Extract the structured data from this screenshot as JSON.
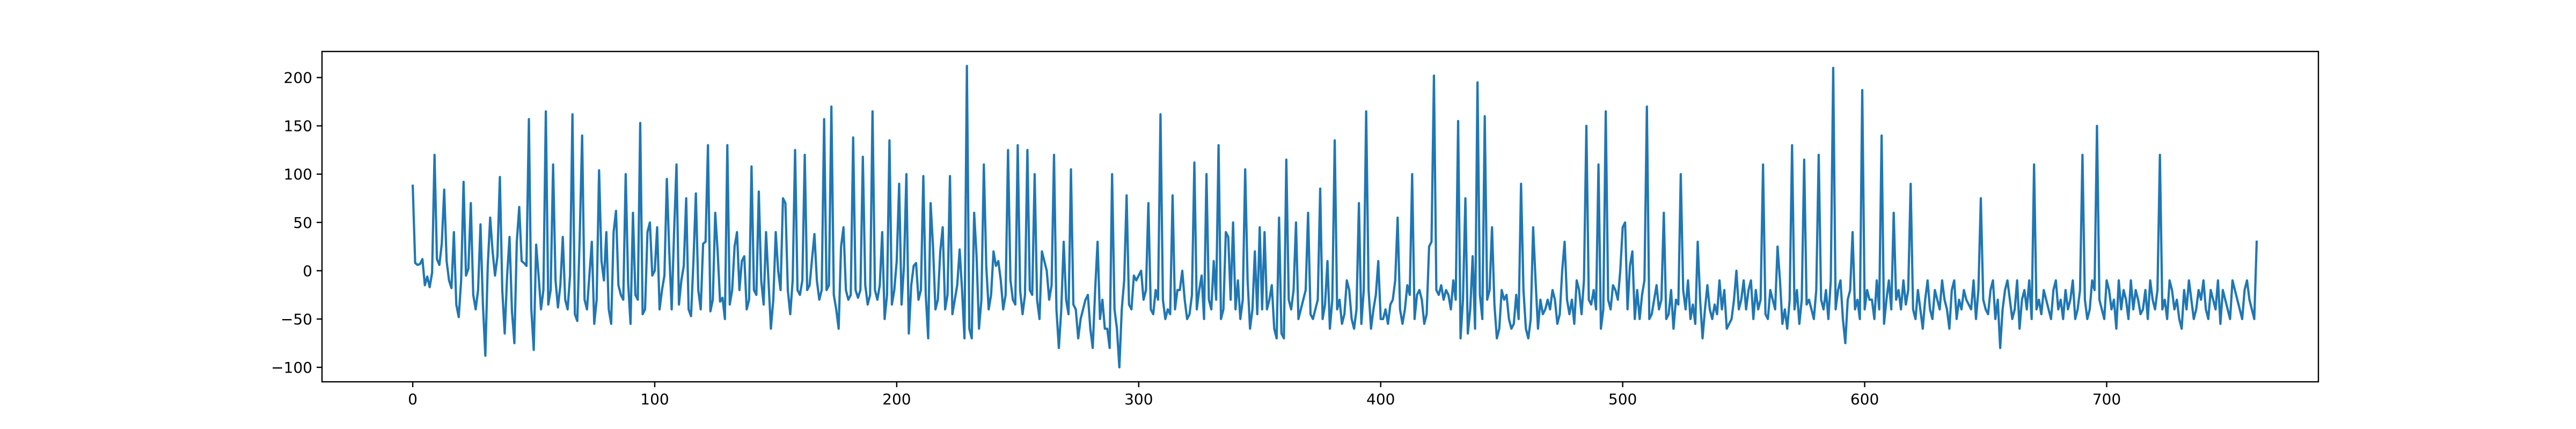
{
  "chart_data": {
    "type": "line",
    "title": "",
    "xlabel": "",
    "ylabel": "",
    "xlim": [
      -37.5,
      787.5
    ],
    "ylim": [
      -115,
      227
    ],
    "xticks": [
      0,
      100,
      200,
      300,
      400,
      500,
      600,
      700
    ],
    "yticks": [
      -100,
      -50,
      0,
      50,
      100,
      150,
      200
    ],
    "x_tick_labels": [
      "0",
      "100",
      "200",
      "300",
      "400",
      "500",
      "600",
      "700"
    ],
    "y_tick_labels": [
      "−100",
      "−50",
      "0",
      "50",
      "100",
      "150",
      "200"
    ],
    "grid": false,
    "line_color": "#1f77b4",
    "series": [
      {
        "x_start": 0,
        "x_step": 1,
        "values": [
          88,
          8,
          6,
          7,
          12,
          -15,
          -6,
          -17,
          -2,
          120,
          12,
          6,
          28,
          84,
          10,
          -10,
          -18,
          40,
          -35,
          -48,
          -10,
          92,
          -5,
          2,
          70,
          -25,
          -40,
          -20,
          48,
          -35,
          -88,
          5,
          55,
          20,
          -5,
          15,
          97,
          -20,
          -65,
          -5,
          35,
          -42,
          -75,
          30,
          66,
          10,
          8,
          5,
          157,
          -40,
          -82,
          27,
          -5,
          -40,
          -20,
          165,
          -35,
          -20,
          110,
          -10,
          -38,
          -15,
          35,
          -30,
          -40,
          -5,
          162,
          -45,
          -52,
          35,
          140,
          -30,
          -40,
          -5,
          30,
          -55,
          -30,
          104,
          10,
          -10,
          40,
          -40,
          -55,
          40,
          62,
          -15,
          -25,
          -30,
          100,
          -12,
          -55,
          60,
          -25,
          -30,
          153,
          -45,
          -40,
          40,
          50,
          -5,
          0,
          45,
          -40,
          -20,
          -5,
          95,
          20,
          -40,
          40,
          110,
          -35,
          -10,
          5,
          75,
          -40,
          -47,
          10,
          80,
          -20,
          -40,
          28,
          30,
          130,
          -42,
          -30,
          60,
          20,
          -32,
          -28,
          -50,
          130,
          -35,
          -20,
          25,
          40,
          -20,
          10,
          15,
          -40,
          -30,
          108,
          -20,
          -25,
          82,
          -10,
          -35,
          40,
          -10,
          -60,
          -30,
          40,
          0,
          -20,
          75,
          70,
          -20,
          -45,
          -10,
          125,
          -20,
          -25,
          -10,
          120,
          -20,
          -15,
          12,
          38,
          -10,
          -30,
          -20,
          157,
          -20,
          -15,
          170,
          -25,
          -40,
          -60,
          25,
          45,
          -20,
          -30,
          -25,
          138,
          -20,
          -28,
          -20,
          118,
          -15,
          -35,
          -25,
          165,
          -20,
          -30,
          -15,
          40,
          -50,
          -25,
          135,
          -35,
          -20,
          10,
          90,
          -35,
          5,
          100,
          -65,
          -15,
          5,
          8,
          -30,
          -20,
          98,
          -25,
          -70,
          70,
          25,
          -40,
          -30,
          20,
          45,
          -40,
          -25,
          98,
          -45,
          -30,
          -15,
          22,
          -20,
          -70,
          212,
          -60,
          -70,
          60,
          15,
          -60,
          -30,
          110,
          5,
          -40,
          -25,
          20,
          5,
          10,
          -10,
          -40,
          -25,
          125,
          -10,
          -30,
          -35,
          130,
          -20,
          -45,
          -25,
          125,
          -20,
          -25,
          100,
          -30,
          -50,
          20,
          10,
          0,
          -30,
          -15,
          120,
          -40,
          -80,
          -40,
          30,
          -30,
          -45,
          105,
          -35,
          -40,
          -70,
          -50,
          -40,
          -30,
          -25,
          -60,
          -80,
          -20,
          30,
          -50,
          -30,
          -60,
          -60,
          -80,
          100,
          -40,
          -60,
          -100,
          -40,
          -10,
          78,
          -35,
          -40,
          -5,
          -10,
          -5,
          0,
          -30,
          -20,
          70,
          -40,
          -45,
          -20,
          -30,
          162,
          -30,
          -50,
          -40,
          -45,
          78,
          -40,
          -20,
          -20,
          0,
          -30,
          -50,
          -45,
          -25,
          112,
          -40,
          -20,
          -5,
          -50,
          100,
          -30,
          -40,
          10,
          -30,
          130,
          -50,
          -40,
          40,
          35,
          -30,
          50,
          -40,
          -10,
          -50,
          -30,
          105,
          -10,
          -60,
          -40,
          20,
          -45,
          45,
          -40,
          40,
          -40,
          -30,
          -15,
          -60,
          -70,
          55,
          -65,
          -70,
          115,
          -30,
          -40,
          -20,
          50,
          -50,
          -40,
          -30,
          -20,
          60,
          -45,
          -50,
          -40,
          -30,
          85,
          -50,
          -35,
          10,
          -60,
          -30,
          135,
          -40,
          -30,
          -55,
          -45,
          -10,
          -20,
          -50,
          -60,
          -40,
          70,
          -55,
          -20,
          165,
          -20,
          -60,
          -40,
          -25,
          10,
          -50,
          -50,
          -40,
          -55,
          -35,
          -30,
          -10,
          55,
          -40,
          -55,
          -40,
          -15,
          -25,
          100,
          -50,
          -25,
          -20,
          -30,
          -55,
          -45,
          25,
          30,
          202,
          -20,
          -25,
          -15,
          -30,
          -20,
          -25,
          -40,
          -10,
          -30,
          155,
          -70,
          -30,
          75,
          -65,
          -40,
          15,
          -60,
          195,
          -25,
          -50,
          160,
          -30,
          -20,
          45,
          -35,
          -70,
          -60,
          -20,
          -30,
          -25,
          -50,
          -60,
          -55,
          -25,
          -50,
          90,
          -20,
          -60,
          -70,
          -50,
          45,
          -10,
          -60,
          -30,
          -45,
          -40,
          -30,
          -40,
          -20,
          -30,
          -55,
          -45,
          0,
          30,
          -30,
          -45,
          -30,
          -55,
          -10,
          -20,
          -45,
          -10,
          150,
          -30,
          -35,
          -20,
          -40,
          110,
          -60,
          -40,
          165,
          -30,
          -40,
          -15,
          -20,
          -30,
          0,
          45,
          50,
          -40,
          5,
          20,
          -50,
          -20,
          -50,
          -25,
          -10,
          170,
          -50,
          -45,
          -30,
          -15,
          -40,
          -30,
          60,
          -50,
          -45,
          -20,
          -60,
          -30,
          -35,
          100,
          -20,
          -40,
          -10,
          -50,
          -35,
          -55,
          30,
          -30,
          -70,
          -40,
          -15,
          -40,
          -50,
          -35,
          -45,
          -10,
          -40,
          -20,
          -60,
          -55,
          -50,
          -30,
          0,
          -40,
          -30,
          -10,
          -40,
          -20,
          -10,
          -50,
          -20,
          -40,
          -30,
          110,
          -45,
          -50,
          -20,
          -30,
          -40,
          25,
          -10,
          -55,
          -40,
          -60,
          -30,
          130,
          -40,
          -20,
          -55,
          -30,
          115,
          -35,
          -30,
          -40,
          -50,
          -20,
          120,
          -30,
          -40,
          -20,
          -50,
          -10,
          210,
          -40,
          -20,
          -10,
          -50,
          -75,
          -30,
          -20,
          40,
          -40,
          -30,
          -50,
          187,
          -40,
          -20,
          -30,
          -30,
          -50,
          -10,
          -40,
          140,
          -55,
          -30,
          -10,
          -40,
          60,
          -30,
          -20,
          -40,
          -10,
          -35,
          -20,
          90,
          -40,
          -50,
          -20,
          -40,
          -60,
          -30,
          -10,
          -40,
          -50,
          -20,
          -30,
          -40,
          -10,
          -30,
          -40,
          -60,
          -20,
          -10,
          -50,
          -30,
          -40,
          -20,
          -30,
          -35,
          -40,
          -10,
          -50,
          -20,
          75,
          -30,
          -40,
          -45,
          -20,
          -10,
          -50,
          -30,
          -80,
          -40,
          -20,
          -10,
          -30,
          -50,
          -40,
          -10,
          -60,
          -30,
          -20,
          -40,
          -10,
          -50,
          110,
          -40,
          -30,
          -45,
          -20,
          -30,
          -40,
          -50,
          -20,
          -10,
          -40,
          -30,
          -50,
          -20,
          -40,
          -30,
          -10,
          -50,
          -40,
          -20,
          120,
          -30,
          -50,
          -40,
          -10,
          -20,
          150,
          -30,
          -40,
          -50,
          -10,
          -20,
          -40,
          -30,
          -60,
          -10,
          -40,
          -20,
          -30,
          -50,
          -10,
          -40,
          -20,
          -30,
          -45,
          -40,
          -20,
          -50,
          -10,
          -30,
          -40,
          -20,
          120,
          -40,
          -30,
          -50,
          -10,
          -20,
          -40,
          -30,
          -50,
          -60,
          -20,
          -40,
          -10,
          -30,
          -50,
          -40,
          -20,
          -30,
          -10,
          -40,
          -50,
          -20,
          -30,
          -40,
          -10,
          -55,
          -20,
          -30,
          -40,
          -50,
          -10,
          -20,
          -30,
          -40,
          -50,
          -20,
          -10,
          -30,
          -40,
          -50,
          30
        ]
      }
    ]
  }
}
